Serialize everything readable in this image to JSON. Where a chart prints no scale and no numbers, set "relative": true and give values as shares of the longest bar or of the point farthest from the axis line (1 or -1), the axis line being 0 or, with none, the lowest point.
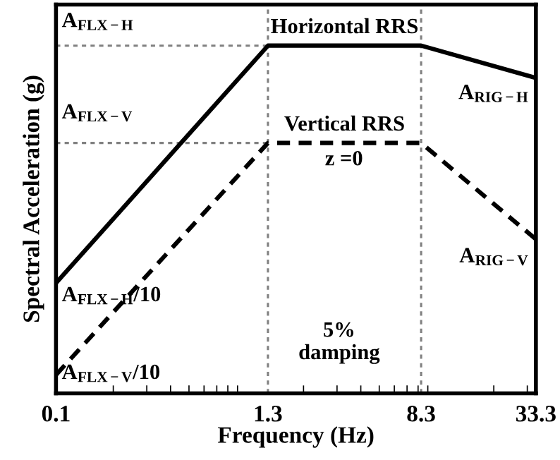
{
  "chart_data": {
    "type": "line",
    "relative": true,
    "log": "x",
    "xlabel": "Frequency (Hz)",
    "ylabel": "Spectral Acceleration (g)",
    "xlim": [
      0.1,
      33.3
    ],
    "xticks": [
      0.1,
      1.3,
      8.3,
      33.3
    ],
    "series": [
      {
        "name": "Horizontal RRS",
        "color": "#000000",
        "line_style": "solid",
        "x": [
          0.1,
          1.3,
          8.3,
          33.3
        ],
        "values": [
          0.317,
          1,
          1,
          0.907
        ]
      },
      {
        "name": "Vertical RRS",
        "color": "#000000",
        "line_style": "dashed",
        "x": [
          0.1,
          1.3,
          8.3,
          33.3
        ],
        "values": [
          0.053,
          0.72,
          0.72,
          0.443
        ]
      }
    ],
    "ref_lines": [
      {
        "axis": "x",
        "value": 1.3,
        "color": "#808080",
        "line_style": "dotted"
      },
      {
        "axis": "x",
        "value": 8.3,
        "color": "#808080",
        "line_style": "dotted"
      },
      {
        "axis": "y",
        "value": 1,
        "color": "#808080",
        "line_style": "dotted"
      },
      {
        "axis": "y",
        "value": 0.72,
        "color": "#808080",
        "line_style": "dotted"
      }
    ],
    "annotations": [
      "A$_{FLX−H}$",
      "A$_{FLX−V}$",
      "A$_{FLX−H}$/10",
      "A$_{FLX−V}$/10",
      "A$_{RIG−H}$",
      "A$_{RIG−V}$",
      "z =0",
      "5%\ndamping"
    ],
    "legend": false,
    "grid": false
  }
}
